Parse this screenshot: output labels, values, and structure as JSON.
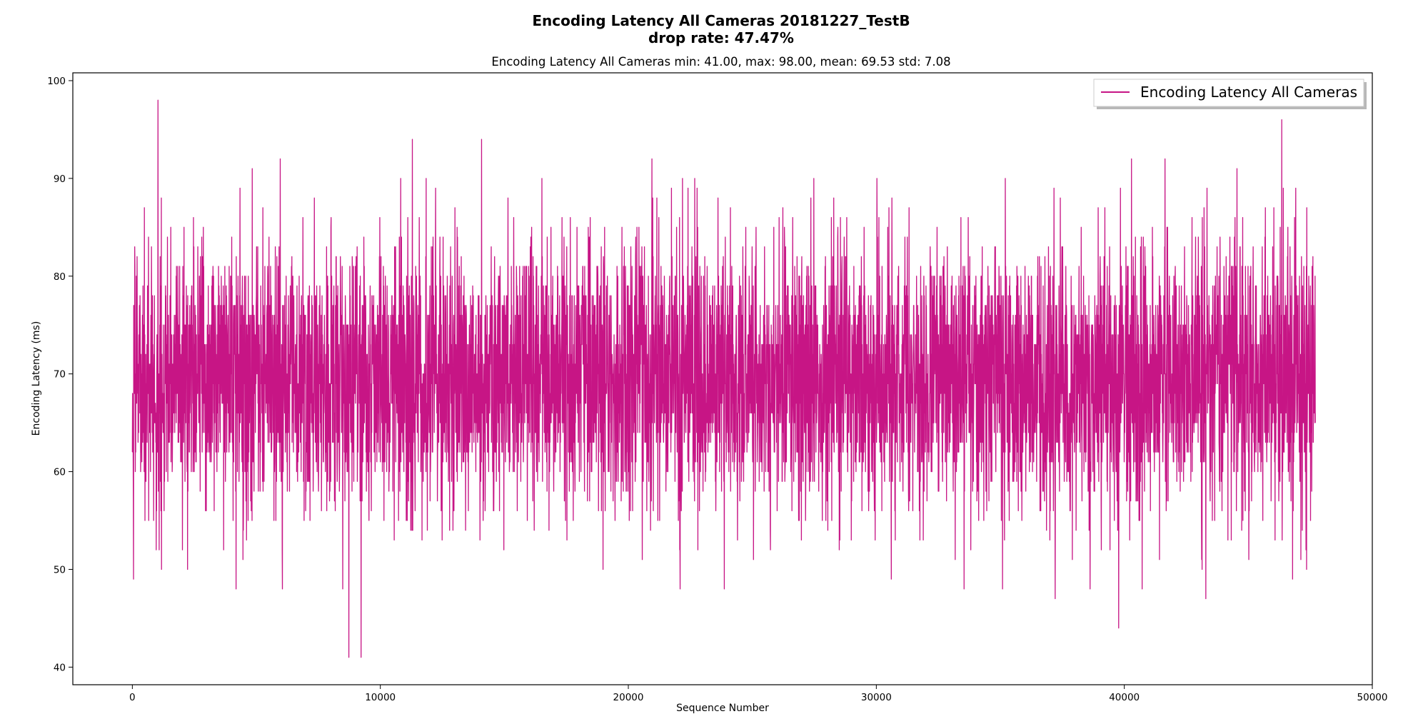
{
  "chart_data": {
    "type": "line",
    "title_lines": [
      "Encoding Latency All Cameras 20181227_TestB",
      "drop rate: 47.47%"
    ],
    "subtitle": "Encoding Latency All Cameras min: 41.00, max: 98.00, mean: 69.53 std: 7.08",
    "xlabel": "Sequence Number",
    "ylabel": "Encoding Latency (ms)",
    "xlim": [
      -2400,
      50000
    ],
    "ylim": [
      38.2,
      100.8
    ],
    "xticks": [
      0,
      10000,
      20000,
      30000,
      40000,
      50000
    ],
    "xtick_labels": [
      "0",
      "10000",
      "20000",
      "30000",
      "40000",
      "50000"
    ],
    "yticks": [
      40,
      50,
      60,
      70,
      80,
      90,
      100
    ],
    "ytick_labels": [
      "40",
      "50",
      "60",
      "70",
      "80",
      "90",
      "100"
    ],
    "grid": false,
    "legend_position": "top-right",
    "series": [
      {
        "name": "Encoding Latency All Cameras",
        "color": "#c71585",
        "x_start": 0,
        "x_end": 47700,
        "count": 47700,
        "min": 41.0,
        "max": 98.0,
        "mean": 69.53,
        "std": 7.08
      }
    ]
  }
}
